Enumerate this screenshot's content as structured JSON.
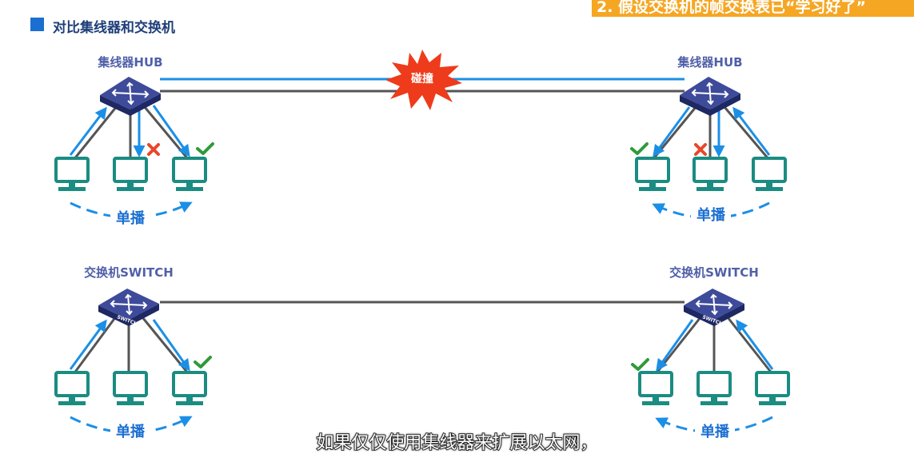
{
  "header": {
    "title": "对比集线器和交换机",
    "banner": "2. 假设交换机的帧交换表已“学习好了”"
  },
  "labels": {
    "hub": "集线器HUB",
    "switch": "交换机SWITCH",
    "unicast": "单播",
    "collision": "碰撞",
    "switch_badge": "SWITCH"
  },
  "subtitle": "如果仅仅使用集线器来扩展以太网，",
  "colors": {
    "accent_blue": "#1b8fe6",
    "label_blue": "#1b6fd1",
    "device_purple": "#3e4a9a",
    "pc_teal": "#1a8c82",
    "check_green": "#2f9a3a",
    "cross_red": "#e8462a",
    "collision_red": "#ee3b1b",
    "banner_orange": "#f5a623"
  },
  "icons": [
    "hub-icon",
    "switch-icon",
    "computer-icon",
    "check-icon",
    "cross-icon",
    "collision-burst-icon"
  ]
}
